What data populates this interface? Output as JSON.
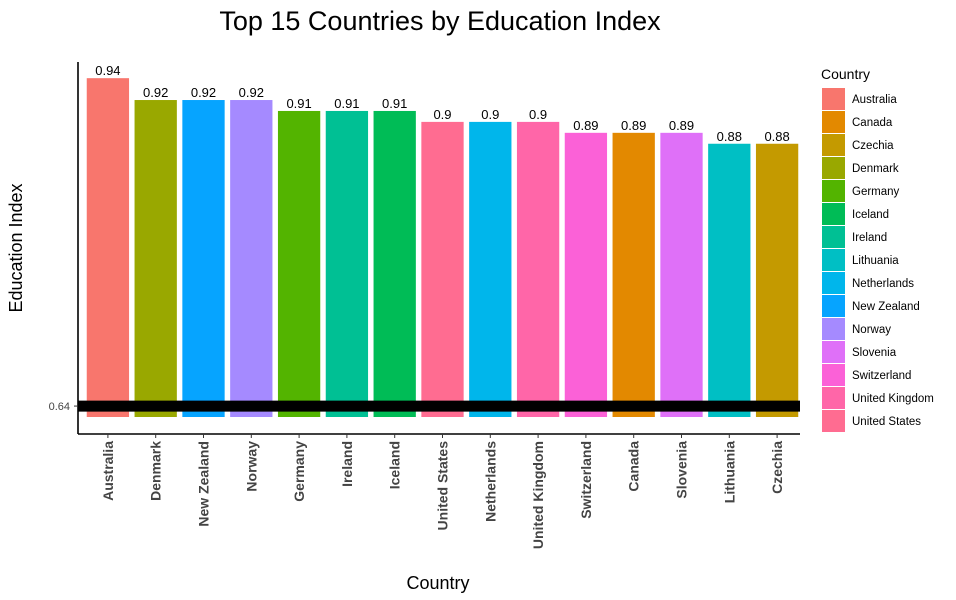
{
  "chart_data": {
    "type": "bar",
    "title": "Top 15 Countries by Education Index",
    "xlabel": "Country",
    "ylabel": "Education Index",
    "categories": [
      "Australia",
      "Denmark",
      "New Zealand",
      "Norway",
      "Germany",
      "Ireland",
      "Iceland",
      "United States",
      "Netherlands",
      "United Kingdom",
      "Switzerland",
      "Canada",
      "Slovenia",
      "Lithuania",
      "Czechia"
    ],
    "values": [
      0.94,
      0.92,
      0.92,
      0.92,
      0.91,
      0.91,
      0.91,
      0.9,
      0.9,
      0.9,
      0.89,
      0.89,
      0.89,
      0.88,
      0.88
    ],
    "value_labels": [
      "0.94",
      "0.92",
      "0.92",
      "0.92",
      "0.91",
      "0.91",
      "0.91",
      "0.9",
      "0.9",
      "0.9",
      "0.89",
      "0.89",
      "0.89",
      "0.88",
      "0.88"
    ],
    "y_ticks": [
      0.64
    ],
    "y_tick_labels": [
      "0.64"
    ],
    "reference_line": {
      "y": 0.64,
      "color": "#000000"
    },
    "legend": {
      "title": "Country",
      "position": "right",
      "entries": [
        "Australia",
        "Canada",
        "Czechia",
        "Denmark",
        "Germany",
        "Iceland",
        "Ireland",
        "Lithuania",
        "Netherlands",
        "New Zealand",
        "Norway",
        "Slovenia",
        "Switzerland",
        "United Kingdom",
        "United States"
      ]
    },
    "colors": {
      "Australia": "#F8766D",
      "Canada": "#E38900",
      "Czechia": "#C49A00",
      "Denmark": "#99A800",
      "Germany": "#53B400",
      "Iceland": "#00BC56",
      "Ireland": "#00C094",
      "Lithuania": "#00BFC4",
      "Netherlands": "#00B6EB",
      "New Zealand": "#06A4FF",
      "Norway": "#A58AFF",
      "Slovenia": "#DF70F8",
      "Switzerland": "#FB61D7",
      "United Kingdom": "#FF66A8",
      "United States": "#FF6C91"
    },
    "grid": false
  }
}
